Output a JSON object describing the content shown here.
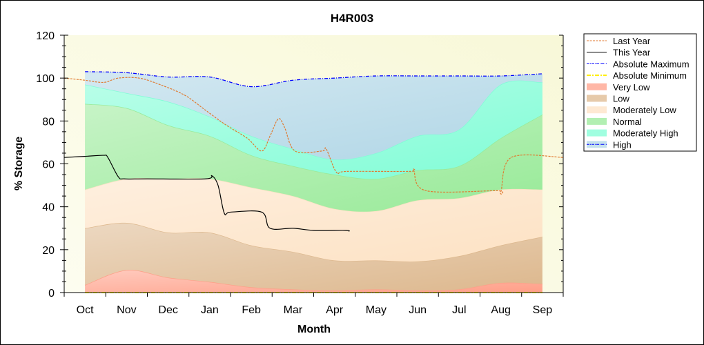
{
  "chart_data": {
    "type": "area",
    "title": "H4R003",
    "xlabel": "Month",
    "ylabel": "% Storage",
    "ylim": [
      0,
      120
    ],
    "yticks": [
      "0",
      "20",
      "40",
      "60",
      "80",
      "100",
      "120"
    ],
    "categories": [
      "Oct",
      "Nov",
      "Dec",
      "Jan",
      "Feb",
      "Mar",
      "Apr",
      "May",
      "Jun",
      "Jul",
      "Aug",
      "Sep"
    ],
    "x_unit": "months since 1 Oct (0-12)",
    "band_x": [
      0.5,
      1.5,
      2.5,
      3.5,
      4.5,
      5.5,
      6.5,
      7.5,
      8.5,
      9.5,
      10.5,
      11.5
    ],
    "bands": [
      {
        "name": "Very Low",
        "color": "#ff9f88",
        "top": [
          3.5,
          10.5,
          7,
          5,
          2.5,
          1.5,
          1,
          1.5,
          1,
          1.5,
          4.5,
          4
        ]
      },
      {
        "name": "Low",
        "color": "#ddb88e",
        "top": [
          30,
          32.5,
          28,
          28,
          22,
          19,
          15,
          15,
          14.5,
          17,
          22,
          26
        ]
      },
      {
        "name": "Moderately Low",
        "color": "#fde2c4",
        "top": [
          48,
          53,
          53,
          53,
          49,
          45,
          39,
          38,
          43,
          44,
          48,
          48
        ]
      },
      {
        "name": "Normal",
        "color": "#98ea98",
        "top": [
          88,
          86,
          78,
          73,
          64,
          59,
          55,
          53,
          57,
          59,
          72,
          83
        ]
      },
      {
        "name": "Moderately High",
        "color": "#80fdd6",
        "top": [
          97,
          93,
          89,
          82,
          73,
          67,
          62,
          65,
          73,
          76,
          97,
          98
        ]
      },
      {
        "name": "High",
        "color": "#b0d6e6",
        "top": [
          103,
          102.5,
          100.5,
          100.5,
          96,
          99,
          100,
          101,
          101,
          101,
          101,
          102
        ]
      }
    ],
    "series": [
      {
        "name": "Last Year",
        "color": "#e07a30",
        "style": "dashed",
        "x": [
          0,
          0.5,
          0.95,
          1.3,
          1.8,
          2.3,
          2.9,
          3.4,
          3.9,
          4.4,
          4.75,
          4.95,
          5.15,
          5.3,
          5.55,
          6.2,
          6.3,
          6.55,
          6.8,
          8.3,
          8.4,
          8.7,
          10.4,
          10.5,
          10.75,
          12
        ],
        "y": [
          100,
          99,
          98,
          100,
          100,
          97,
          92,
          85,
          78,
          72,
          66,
          73,
          81,
          77,
          66,
          66,
          67,
          56,
          56.5,
          56.5,
          57,
          47.5,
          47.5,
          47,
          63,
          63
        ]
      },
      {
        "name": "This Year",
        "color": "#000000",
        "style": "solid",
        "x": [
          0,
          0.5,
          0.95,
          1.05,
          1.3,
          1.45,
          2.0,
          3.4,
          3.55,
          3.7,
          3.85,
          4.0,
          4.75,
          4.95,
          5.5,
          6.0,
          6.77,
          6.85
        ],
        "y": [
          63,
          63.5,
          64,
          63,
          54,
          53,
          53,
          53,
          54.5,
          50,
          37,
          37.5,
          37.5,
          30,
          30,
          29,
          29,
          28.5
        ]
      },
      {
        "name": "Absolute Maximum",
        "color": "#0000ff",
        "style": "dashdot",
        "x": [],
        "y": []
      },
      {
        "name": "Absolute Minimum",
        "color": "#ffee00",
        "style": "dashdot",
        "x": [
          0.5,
          11.5
        ],
        "y": [
          0,
          0
        ]
      }
    ],
    "legend": [
      "Last Year",
      "This Year",
      "Absolute Maximum",
      "Absolute Minimum",
      "Very Low",
      "Low",
      "Moderately Low",
      "Normal",
      "Moderately High",
      "High"
    ],
    "legend_position": "right",
    "grid": false
  }
}
